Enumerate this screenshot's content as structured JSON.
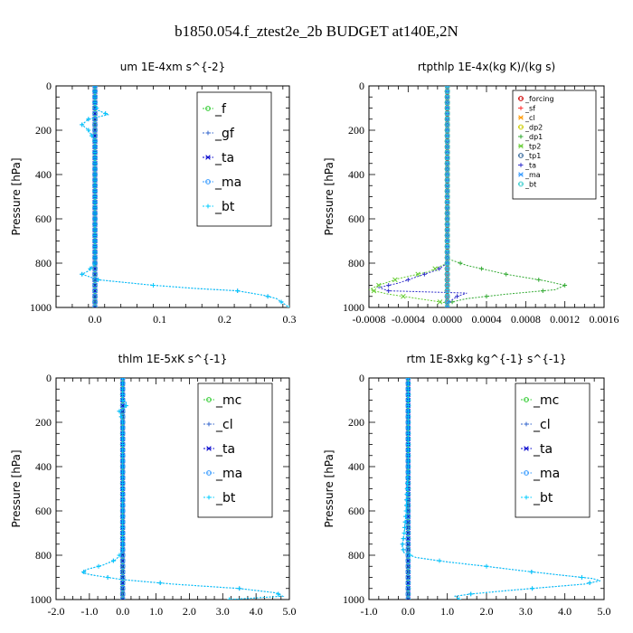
{
  "title": "b1850.054.f_ztest2e_2b  BUDGET at140E,2N",
  "chart_data": [
    {
      "type": "line",
      "title": "um   1E-4xm s^{-2}",
      "ylabel": "Pressure [hPa]",
      "xlim": [
        -0.06,
        0.3
      ],
      "ylim": [
        1000,
        0
      ],
      "xticks": [
        0.0,
        0.1,
        0.2,
        0.3
      ],
      "xtick_labels": [
        "0.0",
        "0.1",
        "0.2",
        "0.3"
      ],
      "yticks": [
        0,
        200,
        400,
        600,
        800,
        1000
      ],
      "ytick_labels": [
        "0",
        "200",
        "400",
        "600",
        "800",
        "1000"
      ],
      "legend_position": "top-right",
      "legend_style": "large",
      "series": [
        {
          "name": "_f",
          "color": "#33cc33",
          "points": [
            [
              0.0,
              0
            ],
            [
              0.0,
              100
            ],
            [
              0.0,
              200
            ],
            [
              0.0,
              300
            ],
            [
              0.0,
              400
            ],
            [
              0.0,
              500
            ],
            [
              0.0,
              600
            ],
            [
              0.0,
              700
            ],
            [
              0.0,
              800
            ],
            [
              0.0,
              900
            ],
            [
              0.0,
              1000
            ]
          ]
        },
        {
          "name": "_gf",
          "color": "#3366cc",
          "points": [
            [
              0.0,
              0
            ],
            [
              0.0,
              90
            ],
            [
              0.005,
              110
            ],
            [
              0.02,
              130
            ],
            [
              -0.01,
              150
            ],
            [
              -0.02,
              175
            ],
            [
              -0.01,
              200
            ],
            [
              0.0,
              250
            ],
            [
              0.0,
              400
            ],
            [
              0.0,
              600
            ],
            [
              0.0,
              800
            ],
            [
              -0.01,
              835
            ],
            [
              -0.02,
              850
            ],
            [
              -0.01,
              860
            ],
            [
              0.005,
              875
            ],
            [
              0.09,
              900
            ],
            [
              0.16,
              915
            ],
            [
              0.22,
              925
            ],
            [
              0.26,
              945
            ],
            [
              0.28,
              960
            ],
            [
              0.29,
              980
            ],
            [
              0.3,
              1000
            ]
          ]
        },
        {
          "name": "_ta",
          "color": "#0000cc",
          "points": [
            [
              0.0,
              0
            ],
            [
              0.0,
              1000
            ]
          ]
        },
        {
          "name": "_ma",
          "color": "#3399ff",
          "points": [
            [
              0.0,
              0
            ],
            [
              0.0,
              1000
            ]
          ]
        },
        {
          "name": "_bt",
          "color": "#00ccff",
          "points": [
            [
              0.0,
              0
            ],
            [
              0.0,
              90
            ],
            [
              0.005,
              110
            ],
            [
              0.02,
              130
            ],
            [
              -0.01,
              150
            ],
            [
              -0.02,
              175
            ],
            [
              -0.01,
              200
            ],
            [
              0.0,
              250
            ],
            [
              0.0,
              400
            ],
            [
              0.0,
              600
            ],
            [
              0.0,
              800
            ],
            [
              -0.01,
              835
            ],
            [
              -0.02,
              850
            ],
            [
              -0.01,
              860
            ],
            [
              0.005,
              875
            ],
            [
              0.09,
              900
            ],
            [
              0.16,
              915
            ],
            [
              0.22,
              925
            ],
            [
              0.26,
              945
            ],
            [
              0.28,
              960
            ],
            [
              0.29,
              980
            ],
            [
              0.3,
              1000
            ]
          ]
        }
      ]
    },
    {
      "type": "line",
      "title": "rtpthlp   1E-4x(kg K)/(kg s)",
      "ylabel": "Pressure [hPa]",
      "xlim": [
        -0.0008,
        0.0016
      ],
      "ylim": [
        1000,
        0
      ],
      "xticks": [
        -0.0008,
        -0.0004,
        0.0,
        0.0004,
        0.0008,
        0.0012,
        0.0016
      ],
      "xtick_labels": [
        "-0.0008",
        "-0.0004",
        "0.0000",
        "0.0004",
        "0.0008",
        "0.0012",
        "0.0016"
      ],
      "yticks": [
        0,
        200,
        400,
        600,
        800,
        1000
      ],
      "ytick_labels": [
        "0",
        "200",
        "400",
        "600",
        "800",
        "1000"
      ],
      "legend_position": "top-right",
      "legend_style": "small",
      "series": [
        {
          "name": "_forcing",
          "color": "#cc0000",
          "points": [
            [
              0.0,
              0
            ],
            [
              0.0,
              1000
            ]
          ]
        },
        {
          "name": "_sf",
          "color": "#ff3333",
          "points": [
            [
              0.0,
              0
            ],
            [
              0.0,
              1000
            ]
          ]
        },
        {
          "name": "_cl",
          "color": "#ff9900",
          "points": [
            [
              0.0,
              0
            ],
            [
              0.0,
              1000
            ]
          ]
        },
        {
          "name": "_dp2",
          "color": "#cccc00",
          "points": [
            [
              0.0,
              0
            ],
            [
              0.0,
              1000
            ]
          ]
        },
        {
          "name": "_dp1",
          "color": "#33aa33",
          "points": [
            [
              0.0,
              0
            ],
            [
              0.0,
              780
            ],
            [
              0.0002,
              810
            ],
            [
              0.0006,
              850
            ],
            [
              0.001,
              880
            ],
            [
              0.0012,
              900
            ],
            [
              0.0011,
              920
            ],
            [
              0.0006,
              940
            ],
            [
              0.0002,
              960
            ],
            [
              0.0,
              980
            ],
            [
              0.0,
              1000
            ]
          ]
        },
        {
          "name": "_tp2",
          "color": "#66cc33",
          "points": [
            [
              0.0,
              0
            ],
            [
              0.0,
              800
            ],
            [
              -0.0002,
              840
            ],
            [
              -0.0005,
              870
            ],
            [
              -0.0007,
              900
            ],
            [
              -0.0008,
              920
            ],
            [
              -0.0006,
              940
            ],
            [
              -0.0003,
              960
            ],
            [
              0.0,
              980
            ],
            [
              0.0,
              1000
            ]
          ]
        },
        {
          "name": "_tp1",
          "color": "#336699",
          "points": [
            [
              0.0,
              0
            ],
            [
              0.0,
              1000
            ]
          ]
        },
        {
          "name": "_ta",
          "color": "#3333cc",
          "points": [
            [
              0.0,
              0
            ],
            [
              0.0,
              800
            ],
            [
              -0.0001,
              830
            ],
            [
              -0.0003,
              860
            ],
            [
              -0.0005,
              890
            ],
            [
              -0.0007,
              910
            ],
            [
              -0.0006,
              925
            ],
            [
              0.0002,
              935
            ],
            [
              0.0001,
              950
            ],
            [
              0.0,
              980
            ],
            [
              0.0,
              1000
            ]
          ]
        },
        {
          "name": "_ma",
          "color": "#3399ff",
          "points": [
            [
              0.0,
              0
            ],
            [
              0.0,
              1000
            ]
          ]
        },
        {
          "name": "_bt",
          "color": "#33cccc",
          "points": [
            [
              0.0,
              0
            ],
            [
              0.0,
              1000
            ]
          ]
        }
      ]
    },
    {
      "type": "line",
      "title": "thlm   1E-5xK s^{-1}",
      "ylabel": "Pressure [hPa]",
      "xlim": [
        -2.0,
        5.0
      ],
      "ylim": [
        1000,
        0
      ],
      "xticks": [
        -2.0,
        -1.0,
        0.0,
        1.0,
        2.0,
        3.0,
        4.0,
        5.0
      ],
      "xtick_labels": [
        "-2.0",
        "-1.0",
        "0.0",
        "1.0",
        "2.0",
        "3.0",
        "4.0",
        "5.0"
      ],
      "yticks": [
        0,
        200,
        400,
        600,
        800,
        1000
      ],
      "ytick_labels": [
        "0",
        "200",
        "400",
        "600",
        "800",
        "1000"
      ],
      "legend_position": "top-right",
      "legend_style": "large",
      "series": [
        {
          "name": "_mc",
          "color": "#33cc33",
          "points": [
            [
              0.0,
              0
            ],
            [
              0.0,
              1000
            ]
          ]
        },
        {
          "name": "_cl",
          "color": "#3366cc",
          "points": [
            [
              0.0,
              0
            ],
            [
              0.0,
              100
            ],
            [
              0.1,
              110
            ],
            [
              0.1,
              130
            ],
            [
              -0.1,
              150
            ],
            [
              -0.05,
              170
            ],
            [
              0.0,
              200
            ],
            [
              0.0,
              400
            ],
            [
              0.0,
              600
            ],
            [
              0.0,
              780
            ],
            [
              -0.2,
              820
            ],
            [
              -0.6,
              845
            ],
            [
              -1.1,
              865
            ],
            [
              -1.2,
              880
            ],
            [
              -0.9,
              890
            ],
            [
              0.0,
              910
            ],
            [
              1.5,
              930
            ],
            [
              3.5,
              950
            ],
            [
              4.6,
              970
            ],
            [
              4.8,
              985
            ],
            [
              3.2,
              1000
            ]
          ]
        },
        {
          "name": "_ta",
          "color": "#0000cc",
          "points": [
            [
              0.0,
              0
            ],
            [
              0.0,
              1000
            ]
          ]
        },
        {
          "name": "_ma",
          "color": "#3399ff",
          "points": [
            [
              0.0,
              0
            ],
            [
              0.0,
              1000
            ]
          ]
        },
        {
          "name": "_bt",
          "color": "#00ccff",
          "points": [
            [
              0.0,
              0
            ],
            [
              0.0,
              100
            ],
            [
              0.1,
              110
            ],
            [
              0.1,
              130
            ],
            [
              -0.1,
              150
            ],
            [
              -0.05,
              170
            ],
            [
              0.0,
              200
            ],
            [
              0.0,
              400
            ],
            [
              0.0,
              600
            ],
            [
              0.0,
              780
            ],
            [
              -0.2,
              820
            ],
            [
              -0.6,
              845
            ],
            [
              -1.1,
              865
            ],
            [
              -1.2,
              880
            ],
            [
              -0.9,
              890
            ],
            [
              0.0,
              910
            ],
            [
              1.5,
              930
            ],
            [
              3.5,
              950
            ],
            [
              4.6,
              970
            ],
            [
              4.8,
              985
            ],
            [
              3.2,
              1000
            ]
          ]
        }
      ]
    },
    {
      "type": "line",
      "title": "rtm   1E-8xkg kg^{-1} s^{-1}",
      "ylabel": "Pressure [hPa]",
      "xlim": [
        -1.0,
        5.0
      ],
      "ylim": [
        1000,
        0
      ],
      "xticks": [
        -1.0,
        0.0,
        1.0,
        2.0,
        3.0,
        4.0,
        5.0
      ],
      "xtick_labels": [
        "-1.0",
        "0.0",
        "1.0",
        "2.0",
        "3.0",
        "4.0",
        "5.0"
      ],
      "yticks": [
        0,
        200,
        400,
        600,
        800,
        1000
      ],
      "ytick_labels": [
        "0",
        "200",
        "400",
        "600",
        "800",
        "1000"
      ],
      "legend_position": "top-right",
      "legend_style": "large",
      "series": [
        {
          "name": "_mc",
          "color": "#33cc33",
          "points": [
            [
              0.0,
              0
            ],
            [
              0.0,
              1000
            ]
          ]
        },
        {
          "name": "_cl",
          "color": "#3366cc",
          "points": [
            [
              0.0,
              0
            ],
            [
              0.0,
              400
            ],
            [
              -0.05,
              600
            ],
            [
              -0.1,
              700
            ],
            [
              -0.15,
              760
            ],
            [
              -0.1,
              790
            ],
            [
              0.2,
              810
            ],
            [
              1.0,
              830
            ],
            [
              2.0,
              850
            ],
            [
              2.9,
              870
            ],
            [
              3.9,
              890
            ],
            [
              4.7,
              905
            ],
            [
              4.9,
              915
            ],
            [
              4.5,
              930
            ],
            [
              3.5,
              945
            ],
            [
              2.5,
              960
            ],
            [
              1.6,
              975
            ],
            [
              1.2,
              985
            ],
            [
              1.3,
              1000
            ]
          ]
        },
        {
          "name": "_ta",
          "color": "#0000cc",
          "points": [
            [
              0.0,
              0
            ],
            [
              0.0,
              1000
            ]
          ]
        },
        {
          "name": "_ma",
          "color": "#3399ff",
          "points": [
            [
              0.0,
              0
            ],
            [
              0.0,
              1000
            ]
          ]
        },
        {
          "name": "_bt",
          "color": "#00ccff",
          "points": [
            [
              0.0,
              0
            ],
            [
              0.0,
              400
            ],
            [
              -0.05,
              600
            ],
            [
              -0.1,
              700
            ],
            [
              -0.15,
              760
            ],
            [
              -0.1,
              790
            ],
            [
              0.2,
              810
            ],
            [
              1.0,
              830
            ],
            [
              2.0,
              850
            ],
            [
              2.9,
              870
            ],
            [
              3.9,
              890
            ],
            [
              4.7,
              905
            ],
            [
              4.9,
              915
            ],
            [
              4.5,
              930
            ],
            [
              3.5,
              945
            ],
            [
              2.5,
              960
            ],
            [
              1.6,
              975
            ],
            [
              1.2,
              985
            ],
            [
              1.3,
              1000
            ]
          ]
        }
      ]
    }
  ]
}
